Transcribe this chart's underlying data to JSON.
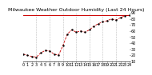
{
  "title": "Milwaukee Weather Outdoor Humidity (Last 24 Hours)",
  "x_values": [
    0,
    1,
    2,
    3,
    4,
    5,
    6,
    7,
    8,
    9,
    10,
    11,
    12,
    13,
    14,
    15,
    16,
    17,
    18,
    19,
    20,
    21,
    22,
    23,
    24
  ],
  "y_values": [
    22,
    20,
    18,
    17,
    24,
    28,
    27,
    22,
    20,
    36,
    55,
    62,
    58,
    60,
    58,
    62,
    68,
    72,
    75,
    77,
    80,
    78,
    82,
    85,
    86
  ],
  "ylim": [
    10,
    90
  ],
  "yticks": [
    10,
    20,
    30,
    40,
    50,
    60,
    70,
    80,
    90
  ],
  "xlim": [
    0,
    24
  ],
  "xtick_positions": [
    0,
    1,
    2,
    3,
    4,
    5,
    6,
    7,
    8,
    9,
    10,
    11,
    12,
    13,
    14,
    15,
    16,
    17,
    18,
    19,
    20,
    21,
    22,
    23,
    24
  ],
  "grid_x_positions": [
    3,
    6,
    9,
    12,
    15,
    18,
    21
  ],
  "line_color": "#cc0000",
  "marker_color": "#000000",
  "grid_color": "#888888",
  "bg_color": "#ffffff",
  "title_fontsize": 4.5,
  "tick_fontsize": 3.5,
  "current_value": 86,
  "current_color": "#cc0000",
  "line_width": 0.6,
  "marker_size": 1.5
}
